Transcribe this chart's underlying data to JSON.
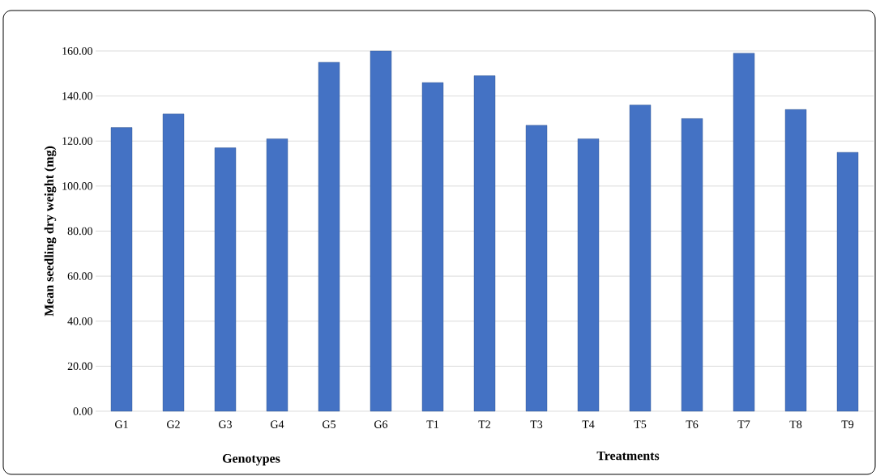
{
  "chart_data": {
    "type": "bar",
    "ylabel": "Mean seedling dry weight (mg)",
    "categories": [
      "G1",
      "G2",
      "G3",
      "G4",
      "G5",
      "G6",
      "T1",
      "T2",
      "T3",
      "T4",
      "T5",
      "T6",
      "T7",
      "T8",
      "T9"
    ],
    "values": [
      126,
      132,
      117,
      121,
      155,
      160,
      146,
      149,
      127,
      121,
      136,
      130,
      159,
      134,
      115
    ],
    "color": "#4472c4",
    "ylim": [
      0,
      160
    ],
    "yticks": [
      {
        "value": 0,
        "label": "0.00"
      },
      {
        "value": 20,
        "label": "20.00"
      },
      {
        "value": 40,
        "label": "40.00"
      },
      {
        "value": 60,
        "label": "60.00"
      },
      {
        "value": 80,
        "label": "80.00"
      },
      {
        "value": 100,
        "label": "100.00"
      },
      {
        "value": 120,
        "label": "120.00"
      },
      {
        "value": 140,
        "label": "140.00"
      },
      {
        "value": 160,
        "label": "160.00"
      }
    ],
    "grid": "y",
    "annotations": [
      "Genotypes",
      "Treatments"
    ]
  }
}
